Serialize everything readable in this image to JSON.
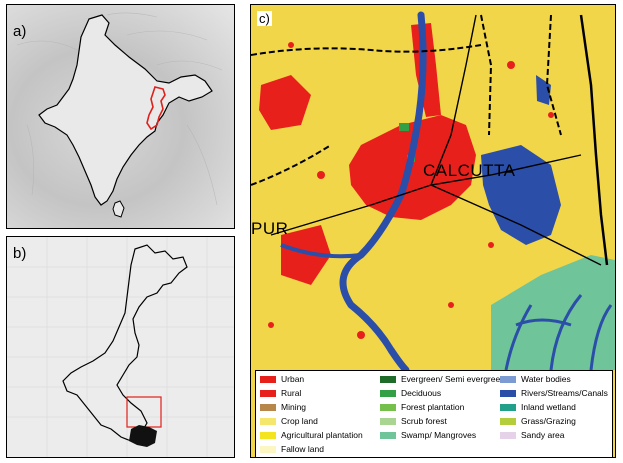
{
  "panels": {
    "a": {
      "label": "a)"
    },
    "b": {
      "label": "b)"
    },
    "c": {
      "label": "c)"
    }
  },
  "map_labels": {
    "city_main": "CALCUTTA",
    "city_west": "PUR"
  },
  "legend": {
    "columns": [
      [
        {
          "label": "Urban",
          "color": "#e8201c"
        },
        {
          "label": "Rural",
          "color": "#e8201c"
        },
        {
          "label": "Mining",
          "color": "#b7864b"
        },
        {
          "label": "Crop land",
          "color": "#f5e66e"
        },
        {
          "label": "Agricultural plantation",
          "color": "#f4e31f"
        },
        {
          "label": "Fallow land",
          "color": "#fcf6c2"
        }
      ],
      [
        {
          "label": "Evergreen/ Semi evergreen",
          "color": "#1e6b2a"
        },
        {
          "label": "Deciduous",
          "color": "#33a045"
        },
        {
          "label": "Forest plantation",
          "color": "#74c04b"
        },
        {
          "label": "Scrub forest",
          "color": "#a9d492"
        },
        {
          "label": "Swamp/ Mangroves",
          "color": "#70c49a"
        }
      ],
      [
        {
          "label": "Water bodies",
          "color": "#7d9bd3"
        },
        {
          "label": "Rivers/Streams/Canals",
          "color": "#2b4ea8"
        },
        {
          "label": "Inland wetland",
          "color": "#22a08a"
        },
        {
          "label": "Grass/Grazing",
          "color": "#b4cd3a"
        },
        {
          "label": "Sandy area",
          "color": "#e6d2e8"
        }
      ]
    ]
  },
  "colors": {
    "india_outline": "#000000",
    "wb_outline": "#e0201c",
    "study_box": "#e0201c",
    "urban": "#e8201c",
    "cropland_base": "#f2d64a",
    "river": "#2b4ea8",
    "mangrove": "#70c49a"
  }
}
